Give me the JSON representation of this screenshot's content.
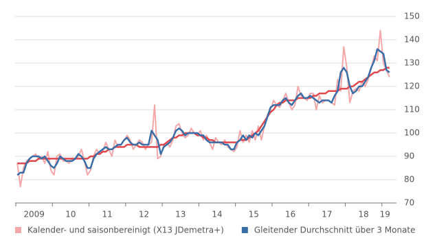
{
  "chart_data": {
    "type": "line",
    "categories": [
      null,
      null,
      null,
      null,
      null,
      null,
      "2009",
      null,
      null,
      null,
      null,
      null,
      null,
      null,
      null,
      null,
      null,
      null,
      "10",
      null,
      null,
      null,
      null,
      null,
      null,
      null,
      null,
      null,
      null,
      null,
      "11",
      null,
      null,
      null,
      null,
      null,
      null,
      null,
      null,
      null,
      null,
      null,
      "12",
      null,
      null,
      null,
      null,
      null,
      null,
      null,
      null,
      null,
      null,
      null,
      "13",
      null,
      null,
      null,
      null,
      null,
      null,
      null,
      null,
      null,
      null,
      null,
      "14",
      null,
      null,
      null,
      null,
      null,
      null,
      null,
      null,
      null,
      null,
      null,
      "15",
      null,
      null,
      null,
      null,
      null,
      null,
      null,
      null,
      null,
      null,
      null,
      "16",
      null,
      null,
      null,
      null,
      null,
      null,
      null,
      null,
      null,
      null,
      null,
      "17",
      null,
      null,
      null,
      null,
      null,
      null,
      null,
      null,
      null,
      null,
      null,
      "18",
      null,
      null,
      null,
      null,
      null,
      null,
      "19",
      null
    ],
    "series": [
      {
        "name": "Kalender- und saisonbereinigt (X13 JDemetra+)",
        "color": "#f4a7a9",
        "values": [
          87,
          77,
          85,
          88,
          89,
          90,
          91,
          89,
          90,
          87,
          92,
          84,
          82,
          90,
          91,
          88,
          88,
          87,
          89,
          89,
          90,
          93,
          88,
          82,
          84,
          90,
          93,
          91,
          92,
          96,
          93,
          90,
          97,
          94,
          95,
          97,
          99,
          97,
          93,
          95,
          97,
          96,
          93,
          95,
          96,
          112,
          89,
          90,
          95,
          96,
          94,
          97,
          103,
          104,
          100,
          98,
          99,
          102,
          100,
          99,
          101,
          97,
          99,
          96,
          93,
          98,
          96,
          95,
          97,
          94,
          93,
          92,
          94,
          101,
          96,
          99,
          96,
          101,
          97,
          103,
          97,
          103,
          108,
          110,
          114,
          112,
          111,
          114,
          117,
          113,
          110,
          112,
          120,
          116,
          115,
          114,
          117,
          117,
          110,
          116,
          113,
          114,
          114,
          113,
          112,
          123,
          118,
          137,
          128,
          113,
          118,
          119,
          118,
          122,
          120,
          123,
          128,
          133,
          131,
          144,
          130,
          127,
          124
        ]
      },
      {
        "color": "#e0484d",
        "values": [
          87,
          87,
          87,
          87,
          88,
          88,
          88,
          89,
          89,
          89,
          89,
          89,
          89,
          89,
          89,
          89,
          89,
          89,
          89,
          89,
          89,
          89,
          89,
          89,
          90,
          90,
          91,
          91,
          92,
          92,
          93,
          93,
          94,
          94,
          94,
          94,
          95,
          95,
          95,
          95,
          94,
          94,
          94,
          94,
          94,
          94,
          94,
          95,
          95,
          96,
          97,
          98,
          98,
          99,
          99,
          100,
          100,
          100,
          100,
          99,
          99,
          98,
          98,
          97,
          97,
          96,
          96,
          96,
          96,
          96,
          96,
          96,
          96,
          97,
          97,
          97,
          98,
          99,
          100,
          101,
          103,
          105,
          107,
          109,
          110,
          112,
          113,
          113,
          114,
          114,
          114,
          114,
          115,
          115,
          115,
          115,
          115,
          116,
          116,
          117,
          117,
          117,
          118,
          118,
          118,
          118,
          119,
          119,
          119,
          120,
          120,
          121,
          122,
          122,
          123,
          124,
          125,
          126,
          126,
          127,
          127,
          128,
          128
        ]
      },
      {
        "name": "Gleitender Durchschnitt über 3 Monate",
        "color": "#3a6ea8",
        "values": [
          82,
          83,
          83,
          87,
          89,
          90,
          90,
          90,
          89,
          90,
          88,
          86,
          85,
          87,
          90,
          89,
          88,
          88,
          88,
          89,
          91,
          90,
          88,
          85,
          85,
          89,
          91,
          92,
          93,
          94,
          93,
          93,
          94,
          95,
          95,
          97,
          98,
          96,
          95,
          95,
          96,
          95,
          95,
          95,
          101,
          99,
          97,
          91,
          94,
          95,
          96,
          98,
          101,
          102,
          101,
          99,
          100,
          100,
          100,
          100,
          99,
          99,
          97,
          96,
          96,
          96,
          96,
          96,
          95,
          95,
          93,
          93,
          96,
          97,
          99,
          97,
          99,
          98,
          100,
          99,
          101,
          103,
          107,
          111,
          112,
          112,
          112,
          114,
          115,
          113,
          112,
          114,
          116,
          117,
          115,
          115,
          116,
          115,
          114,
          113,
          114,
          114,
          114,
          113,
          116,
          118,
          126,
          128,
          126,
          120,
          117,
          118,
          120,
          120,
          122,
          124,
          128,
          131,
          136,
          135,
          134,
          127,
          126
        ]
      }
    ],
    "ylim": [
      70,
      150
    ],
    "yticks": [
      70,
      80,
      90,
      100,
      110,
      120,
      130,
      140,
      150
    ],
    "grid": true
  }
}
